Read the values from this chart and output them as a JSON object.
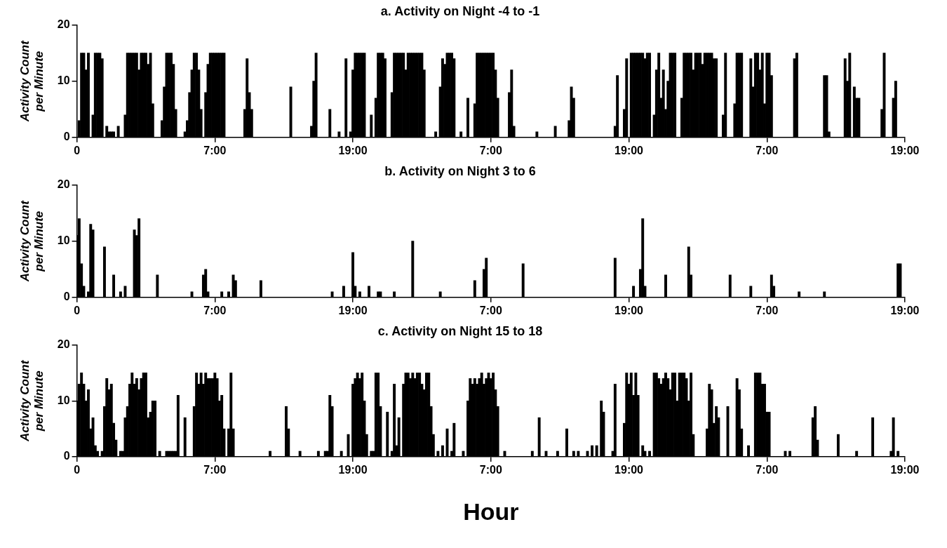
{
  "chart_data": [
    {
      "type": "bar",
      "title": "a. Activity on Night -4 to -1",
      "ylabel": "Activity Count per Minute",
      "color": "#000000",
      "grid": false,
      "legend": false,
      "ylim": [
        0,
        20
      ],
      "yticks": [
        0,
        10,
        20
      ],
      "categories": [
        "0",
        null,
        null,
        null,
        null,
        null,
        null,
        null,
        null,
        null,
        null,
        null,
        null,
        null,
        null,
        null,
        null,
        null,
        null,
        null,
        null,
        null,
        null,
        null,
        null,
        null,
        null,
        null,
        null,
        null,
        null,
        null,
        null,
        null,
        null,
        null,
        null,
        null,
        null,
        null,
        null,
        null,
        null,
        null,
        null,
        null,
        null,
        null,
        null,
        null,
        null,
        null,
        null,
        null,
        null,
        null,
        null,
        null,
        null,
        null,
        "7:00",
        null,
        null,
        null,
        null,
        null,
        null,
        null,
        null,
        null,
        null,
        null,
        null,
        null,
        null,
        null,
        null,
        null,
        null,
        null,
        null,
        null,
        null,
        null,
        null,
        null,
        null,
        null,
        null,
        null,
        null,
        null,
        null,
        null,
        null,
        null,
        null,
        null,
        null,
        null,
        null,
        null,
        null,
        null,
        null,
        null,
        null,
        null,
        null,
        null,
        null,
        null,
        null,
        null,
        null,
        null,
        null,
        null,
        null,
        null,
        "19:00",
        null,
        null,
        null,
        null,
        null,
        null,
        null,
        null,
        null,
        null,
        null,
        null,
        null,
        null,
        null,
        null,
        null,
        null,
        null,
        null,
        null,
        null,
        null,
        null,
        null,
        null,
        null,
        null,
        null,
        null,
        null,
        null,
        null,
        null,
        null,
        null,
        null,
        null,
        null,
        null,
        null,
        null,
        null,
        null,
        null,
        null,
        null,
        null,
        null,
        null,
        null,
        null,
        null,
        null,
        null,
        null,
        null,
        null,
        null,
        "7:00",
        null,
        null,
        null,
        null,
        null,
        null,
        null,
        null,
        null,
        null,
        null,
        null,
        null,
        null,
        null,
        null,
        null,
        null,
        null,
        null,
        null,
        null,
        null,
        null,
        null,
        null,
        null,
        null,
        null,
        null,
        null,
        null,
        null,
        null,
        null,
        null,
        null,
        null,
        null,
        null,
        null,
        null,
        null,
        null,
        null,
        null,
        null,
        null,
        null,
        null,
        null,
        null,
        null,
        null,
        null,
        null,
        null,
        null,
        null,
        "19:00",
        null,
        null,
        null,
        null,
        null,
        null,
        null,
        null,
        null,
        null,
        null,
        null,
        null,
        null,
        null,
        null,
        null,
        null,
        null,
        null,
        null,
        null,
        null,
        null,
        null,
        null,
        null,
        null,
        null,
        null,
        null,
        null,
        null,
        null,
        null,
        null,
        null,
        null,
        null,
        null,
        null,
        null,
        null,
        null,
        null,
        null,
        null,
        null,
        null,
        null,
        null,
        null,
        null,
        null,
        null,
        null,
        null,
        null,
        null,
        "7:00",
        null,
        null,
        null,
        null,
        null,
        null,
        null,
        null,
        null,
        null,
        null,
        null,
        null,
        null,
        null,
        null,
        null,
        null,
        null,
        null,
        null,
        null,
        null,
        null,
        null,
        null,
        null,
        null,
        null,
        null,
        null,
        null,
        null,
        null,
        null,
        null,
        null,
        null,
        null,
        null,
        null,
        null,
        null,
        null,
        null,
        null,
        null,
        null,
        null,
        null,
        null,
        null,
        null,
        null,
        null,
        null,
        null,
        null,
        null,
        "19:00"
      ],
      "values": [
        0,
        3,
        15,
        15,
        12,
        15,
        0,
        4,
        15,
        15,
        15,
        14,
        0,
        2,
        1,
        1,
        1,
        0,
        2,
        0,
        0,
        4,
        15,
        15,
        15,
        15,
        15,
        12,
        15,
        15,
        15,
        13,
        15,
        6,
        0,
        0,
        0,
        3,
        9,
        15,
        15,
        15,
        13,
        5,
        0,
        0,
        0,
        1,
        3,
        8,
        12,
        15,
        15,
        12,
        5,
        0,
        8,
        13,
        15,
        15,
        15,
        15,
        15,
        15,
        15,
        0,
        0,
        0,
        0,
        0,
        0,
        0,
        0,
        5,
        14,
        8,
        5,
        0,
        0,
        0,
        0,
        0,
        0,
        0,
        0,
        0,
        0,
        0,
        0,
        0,
        0,
        0,
        0,
        9,
        0,
        0,
        0,
        0,
        0,
        0,
        0,
        0,
        2,
        10,
        15,
        0,
        0,
        0,
        0,
        0,
        5,
        0,
        0,
        0,
        1,
        0,
        0,
        14,
        0,
        1,
        12,
        15,
        15,
        15,
        15,
        15,
        0,
        0,
        4,
        0,
        7,
        15,
        15,
        15,
        14,
        0,
        0,
        8,
        15,
        15,
        15,
        15,
        15,
        12,
        15,
        15,
        15,
        15,
        15,
        15,
        15,
        12,
        0,
        0,
        0,
        0,
        1,
        0,
        9,
        14,
        13,
        15,
        15,
        15,
        14,
        0,
        0,
        1,
        0,
        0,
        7,
        0,
        0,
        6,
        15,
        15,
        15,
        15,
        15,
        15,
        15,
        15,
        12,
        7,
        0,
        0,
        0,
        0,
        8,
        12,
        2,
        0,
        0,
        0,
        0,
        0,
        0,
        0,
        0,
        0,
        1,
        0,
        0,
        0,
        0,
        0,
        0,
        0,
        2,
        0,
        0,
        0,
        0,
        0,
        3,
        9,
        7,
        0,
        0,
        0,
        0,
        0,
        0,
        0,
        0,
        0,
        0,
        0,
        0,
        0,
        0,
        0,
        0,
        0,
        2,
        11,
        0,
        0,
        5,
        14,
        0,
        15,
        15,
        15,
        15,
        15,
        15,
        14,
        15,
        15,
        0,
        4,
        12,
        15,
        7,
        12,
        5,
        10,
        15,
        15,
        15,
        0,
        0,
        7,
        15,
        15,
        15,
        15,
        12,
        15,
        15,
        15,
        13,
        15,
        15,
        15,
        15,
        14,
        14,
        0,
        0,
        4,
        15,
        0,
        0,
        0,
        6,
        15,
        15,
        15,
        0,
        0,
        0,
        14,
        9,
        15,
        15,
        12,
        15,
        6,
        15,
        15,
        11,
        0,
        0,
        0,
        0,
        0,
        0,
        0,
        0,
        0,
        14,
        15,
        0,
        0,
        0,
        0,
        0,
        0,
        0,
        0,
        0,
        0,
        0,
        11,
        11,
        1,
        0,
        0,
        0,
        0,
        0,
        0,
        14,
        10,
        15,
        0,
        9,
        7,
        7,
        0,
        0,
        0,
        0,
        0,
        0,
        0,
        0,
        0,
        5,
        15,
        0,
        0,
        0,
        7,
        10,
        0,
        0,
        0,
        0
      ]
    },
    {
      "type": "bar",
      "title": "b. Activity on Night 3 to 6",
      "ylabel": "Activity Count per Minute",
      "color": "#000000",
      "grid": false,
      "legend": false,
      "ylim": [
        0,
        20
      ],
      "yticks": [
        0,
        10,
        20
      ],
      "categories": [
        "0",
        null,
        null,
        null,
        null,
        null,
        null,
        null,
        null,
        null,
        null,
        null,
        null,
        null,
        null,
        null,
        null,
        null,
        null,
        null,
        null,
        null,
        null,
        null,
        null,
        null,
        null,
        null,
        null,
        null,
        null,
        null,
        null,
        null,
        null,
        null,
        null,
        null,
        null,
        null,
        null,
        null,
        null,
        null,
        null,
        null,
        null,
        null,
        null,
        null,
        null,
        null,
        null,
        null,
        null,
        null,
        null,
        null,
        null,
        null,
        "7:00",
        null,
        null,
        null,
        null,
        null,
        null,
        null,
        null,
        null,
        null,
        null,
        null,
        null,
        null,
        null,
        null,
        null,
        null,
        null,
        null,
        null,
        null,
        null,
        null,
        null,
        null,
        null,
        null,
        null,
        null,
        null,
        null,
        null,
        null,
        null,
        null,
        null,
        null,
        null,
        null,
        null,
        null,
        null,
        null,
        null,
        null,
        null,
        null,
        null,
        null,
        null,
        null,
        null,
        null,
        null,
        null,
        null,
        null,
        null,
        "19:00",
        null,
        null,
        null,
        null,
        null,
        null,
        null,
        null,
        null,
        null,
        null,
        null,
        null,
        null,
        null,
        null,
        null,
        null,
        null,
        null,
        null,
        null,
        null,
        null,
        null,
        null,
        null,
        null,
        null,
        null,
        null,
        null,
        null,
        null,
        null,
        null,
        null,
        null,
        null,
        null,
        null,
        null,
        null,
        null,
        null,
        null,
        null,
        null,
        null,
        null,
        null,
        null,
        null,
        null,
        null,
        null,
        null,
        null,
        null,
        "7:00",
        null,
        null,
        null,
        null,
        null,
        null,
        null,
        null,
        null,
        null,
        null,
        null,
        null,
        null,
        null,
        null,
        null,
        null,
        null,
        null,
        null,
        null,
        null,
        null,
        null,
        null,
        null,
        null,
        null,
        null,
        null,
        null,
        null,
        null,
        null,
        null,
        null,
        null,
        null,
        null,
        null,
        null,
        null,
        null,
        null,
        null,
        null,
        null,
        null,
        null,
        null,
        null,
        null,
        null,
        null,
        null,
        null,
        null,
        null,
        "19:00",
        null,
        null,
        null,
        null,
        null,
        null,
        null,
        null,
        null,
        null,
        null,
        null,
        null,
        null,
        null,
        null,
        null,
        null,
        null,
        null,
        null,
        null,
        null,
        null,
        null,
        null,
        null,
        null,
        null,
        null,
        null,
        null,
        null,
        null,
        null,
        null,
        null,
        null,
        null,
        null,
        null,
        null,
        null,
        null,
        null,
        null,
        null,
        null,
        null,
        null,
        null,
        null,
        null,
        null,
        null,
        null,
        null,
        null,
        null,
        "7:00",
        null,
        null,
        null,
        null,
        null,
        null,
        null,
        null,
        null,
        null,
        null,
        null,
        null,
        null,
        null,
        null,
        null,
        null,
        null,
        null,
        null,
        null,
        null,
        null,
        null,
        null,
        null,
        null,
        null,
        null,
        null,
        null,
        null,
        null,
        null,
        null,
        null,
        null,
        null,
        null,
        null,
        null,
        null,
        null,
        null,
        null,
        null,
        null,
        null,
        null,
        null,
        null,
        null,
        null,
        null,
        null,
        null,
        null,
        null,
        "19:00"
      ],
      "values": [
        11,
        14,
        6,
        2,
        0,
        1,
        13,
        12,
        0,
        0,
        0,
        0,
        9,
        0,
        0,
        0,
        4,
        0,
        0,
        1,
        0,
        2,
        0,
        0,
        0,
        12,
        11,
        14,
        0,
        0,
        0,
        0,
        0,
        0,
        0,
        4,
        0,
        0,
        0,
        0,
        0,
        0,
        0,
        0,
        0,
        0,
        0,
        0,
        0,
        0,
        1,
        0,
        0,
        0,
        0,
        4,
        5,
        1,
        0,
        0,
        0,
        0,
        0,
        1,
        0,
        0,
        1,
        0,
        4,
        3,
        0,
        0,
        0,
        0,
        0,
        0,
        0,
        0,
        0,
        0,
        3,
        0,
        0,
        0,
        0,
        0,
        0,
        0,
        0,
        0,
        0,
        0,
        0,
        0,
        0,
        0,
        0,
        0,
        0,
        0,
        0,
        0,
        0,
        0,
        0,
        0,
        0,
        0,
        0,
        0,
        0,
        1,
        0,
        0,
        0,
        0,
        2,
        0,
        0,
        0,
        8,
        2,
        0,
        1,
        0,
        0,
        0,
        2,
        0,
        0,
        0,
        1,
        1,
        0,
        0,
        0,
        0,
        0,
        1,
        0,
        0,
        0,
        0,
        0,
        0,
        0,
        10,
        0,
        0,
        0,
        0,
        0,
        0,
        0,
        0,
        0,
        0,
        0,
        1,
        0,
        0,
        0,
        0,
        0,
        0,
        0,
        0,
        0,
        0,
        0,
        0,
        0,
        0,
        3,
        0,
        0,
        0,
        5,
        7,
        0,
        0,
        0,
        0,
        0,
        0,
        0,
        0,
        0,
        0,
        0,
        0,
        0,
        0,
        0,
        6,
        0,
        0,
        0,
        0,
        0,
        0,
        0,
        0,
        0,
        0,
        0,
        0,
        0,
        0,
        0,
        0,
        0,
        0,
        0,
        0,
        0,
        0,
        0,
        0,
        0,
        0,
        0,
        0,
        0,
        0,
        0,
        0,
        0,
        0,
        0,
        0,
        0,
        0,
        0,
        7,
        0,
        0,
        0,
        0,
        0,
        0,
        0,
        2,
        0,
        0,
        5,
        14,
        2,
        0,
        0,
        0,
        0,
        0,
        0,
        0,
        0,
        4,
        0,
        0,
        0,
        0,
        0,
        0,
        0,
        0,
        0,
        9,
        4,
        0,
        0,
        0,
        0,
        0,
        0,
        0,
        0,
        0,
        0,
        0,
        0,
        0,
        0,
        0,
        0,
        4,
        0,
        0,
        0,
        0,
        0,
        0,
        0,
        0,
        2,
        0,
        0,
        0,
        0,
        0,
        0,
        0,
        0,
        4,
        2,
        0,
        0,
        0,
        0,
        0,
        0,
        0,
        0,
        0,
        0,
        1,
        0,
        0,
        0,
        0,
        0,
        0,
        0,
        0,
        0,
        0,
        1,
        0,
        0,
        0,
        0,
        0,
        0,
        0,
        0,
        0,
        0,
        0,
        0,
        0,
        0,
        0,
        0,
        0,
        0,
        0,
        0,
        0,
        0,
        0,
        0,
        0,
        0,
        0,
        0,
        0,
        0,
        0,
        6,
        6,
        0,
        0
      ]
    },
    {
      "type": "bar",
      "title": "c. Activity on Night 15 to 18",
      "ylabel": "Activity Count per Minute",
      "xlabel": "Hour",
      "color": "#000000",
      "grid": false,
      "legend": false,
      "ylim": [
        0,
        20
      ],
      "yticks": [
        0,
        10,
        20
      ],
      "categories": [
        "0",
        null,
        null,
        null,
        null,
        null,
        null,
        null,
        null,
        null,
        null,
        null,
        null,
        null,
        null,
        null,
        null,
        null,
        null,
        null,
        null,
        null,
        null,
        null,
        null,
        null,
        null,
        null,
        null,
        null,
        null,
        null,
        null,
        null,
        null,
        null,
        null,
        null,
        null,
        null,
        null,
        null,
        null,
        null,
        null,
        null,
        null,
        null,
        null,
        null,
        null,
        null,
        null,
        null,
        null,
        null,
        null,
        null,
        null,
        null,
        "7:00",
        null,
        null,
        null,
        null,
        null,
        null,
        null,
        null,
        null,
        null,
        null,
        null,
        null,
        null,
        null,
        null,
        null,
        null,
        null,
        null,
        null,
        null,
        null,
        null,
        null,
        null,
        null,
        null,
        null,
        null,
        null,
        null,
        null,
        null,
        null,
        null,
        null,
        null,
        null,
        null,
        null,
        null,
        null,
        null,
        null,
        null,
        null,
        null,
        null,
        null,
        null,
        null,
        null,
        null,
        null,
        null,
        null,
        null,
        null,
        "19:00",
        null,
        null,
        null,
        null,
        null,
        null,
        null,
        null,
        null,
        null,
        null,
        null,
        null,
        null,
        null,
        null,
        null,
        null,
        null,
        null,
        null,
        null,
        null,
        null,
        null,
        null,
        null,
        null,
        null,
        null,
        null,
        null,
        null,
        null,
        null,
        null,
        null,
        null,
        null,
        null,
        null,
        null,
        null,
        null,
        null,
        null,
        null,
        null,
        null,
        null,
        null,
        null,
        null,
        null,
        null,
        null,
        null,
        null,
        null,
        "7:00",
        null,
        null,
        null,
        null,
        null,
        null,
        null,
        null,
        null,
        null,
        null,
        null,
        null,
        null,
        null,
        null,
        null,
        null,
        null,
        null,
        null,
        null,
        null,
        null,
        null,
        null,
        null,
        null,
        null,
        null,
        null,
        null,
        null,
        null,
        null,
        null,
        null,
        null,
        null,
        null,
        null,
        null,
        null,
        null,
        null,
        null,
        null,
        null,
        null,
        null,
        null,
        null,
        null,
        null,
        null,
        null,
        null,
        null,
        null,
        "19:00",
        null,
        null,
        null,
        null,
        null,
        null,
        null,
        null,
        null,
        null,
        null,
        null,
        null,
        null,
        null,
        null,
        null,
        null,
        null,
        null,
        null,
        null,
        null,
        null,
        null,
        null,
        null,
        null,
        null,
        null,
        null,
        null,
        null,
        null,
        null,
        null,
        null,
        null,
        null,
        null,
        null,
        null,
        null,
        null,
        null,
        null,
        null,
        null,
        null,
        null,
        null,
        null,
        null,
        null,
        null,
        null,
        null,
        null,
        null,
        "7:00",
        null,
        null,
        null,
        null,
        null,
        null,
        null,
        null,
        null,
        null,
        null,
        null,
        null,
        null,
        null,
        null,
        null,
        null,
        null,
        null,
        null,
        null,
        null,
        null,
        null,
        null,
        null,
        null,
        null,
        null,
        null,
        null,
        null,
        null,
        null,
        null,
        null,
        null,
        null,
        null,
        null,
        null,
        null,
        null,
        null,
        null,
        null,
        null,
        null,
        null,
        null,
        null,
        null,
        null,
        null,
        null,
        null,
        null,
        null,
        "19:00"
      ],
      "values": [
        10,
        13,
        15,
        13,
        10,
        12,
        5,
        7,
        2,
        1,
        0,
        1,
        9,
        14,
        12,
        13,
        6,
        3,
        0,
        1,
        1,
        7,
        9,
        13,
        15,
        13,
        14,
        12,
        14,
        15,
        15,
        7,
        8,
        10,
        10,
        0,
        1,
        0,
        0,
        1,
        1,
        1,
        1,
        1,
        11,
        0,
        0,
        7,
        0,
        0,
        0,
        9,
        15,
        13,
        15,
        13,
        15,
        14,
        14,
        14,
        15,
        14,
        10,
        11,
        5,
        0,
        5,
        15,
        5,
        0,
        0,
        0,
        0,
        0,
        0,
        0,
        0,
        0,
        0,
        0,
        0,
        0,
        0,
        0,
        1,
        0,
        0,
        0,
        0,
        0,
        0,
        9,
        5,
        0,
        0,
        0,
        0,
        1,
        0,
        0,
        0,
        0,
        0,
        0,
        0,
        1,
        0,
        0,
        1,
        1,
        11,
        9,
        0,
        0,
        0,
        1,
        0,
        0,
        4,
        0,
        13,
        14,
        15,
        14,
        15,
        10,
        4,
        0,
        1,
        1,
        15,
        15,
        9,
        0,
        0,
        8,
        0,
        1,
        13,
        2,
        7,
        0,
        13,
        15,
        15,
        14,
        15,
        14,
        15,
        15,
        13,
        12,
        15,
        15,
        9,
        4,
        0,
        1,
        0,
        2,
        0,
        5,
        0,
        1,
        6,
        0,
        0,
        0,
        1,
        0,
        10,
        14,
        13,
        14,
        13,
        14,
        15,
        13,
        14,
        15,
        14,
        15,
        12,
        9,
        0,
        0,
        1,
        0,
        0,
        0,
        0,
        0,
        0,
        0,
        0,
        0,
        0,
        0,
        1,
        0,
        0,
        7,
        0,
        0,
        1,
        0,
        0,
        0,
        0,
        1,
        0,
        0,
        0,
        5,
        0,
        0,
        1,
        0,
        1,
        0,
        0,
        0,
        1,
        0,
        2,
        0,
        2,
        0,
        10,
        8,
        0,
        0,
        0,
        1,
        13,
        0,
        0,
        0,
        6,
        15,
        13,
        15,
        11,
        15,
        11,
        0,
        2,
        1,
        0,
        1,
        0,
        15,
        15,
        14,
        13,
        14,
        15,
        14,
        12,
        15,
        15,
        10,
        15,
        15,
        15,
        14,
        10,
        15,
        4,
        0,
        0,
        0,
        0,
        0,
        5,
        13,
        12,
        6,
        9,
        7,
        0,
        0,
        0,
        9,
        0,
        0,
        0,
        14,
        12,
        5,
        0,
        0,
        2,
        0,
        0,
        15,
        15,
        15,
        13,
        13,
        8,
        8,
        0,
        0,
        0,
        0,
        0,
        0,
        1,
        0,
        1,
        0,
        0,
        0,
        0,
        0,
        0,
        0,
        0,
        0,
        7,
        9,
        3,
        0,
        0,
        0,
        0,
        0,
        0,
        0,
        0,
        4,
        0,
        0,
        0,
        0,
        0,
        0,
        0,
        1,
        0,
        0,
        0,
        0,
        0,
        0,
        7,
        0,
        0,
        0,
        0,
        0,
        0,
        0,
        1,
        7,
        0,
        1,
        0,
        0,
        0
      ]
    }
  ]
}
